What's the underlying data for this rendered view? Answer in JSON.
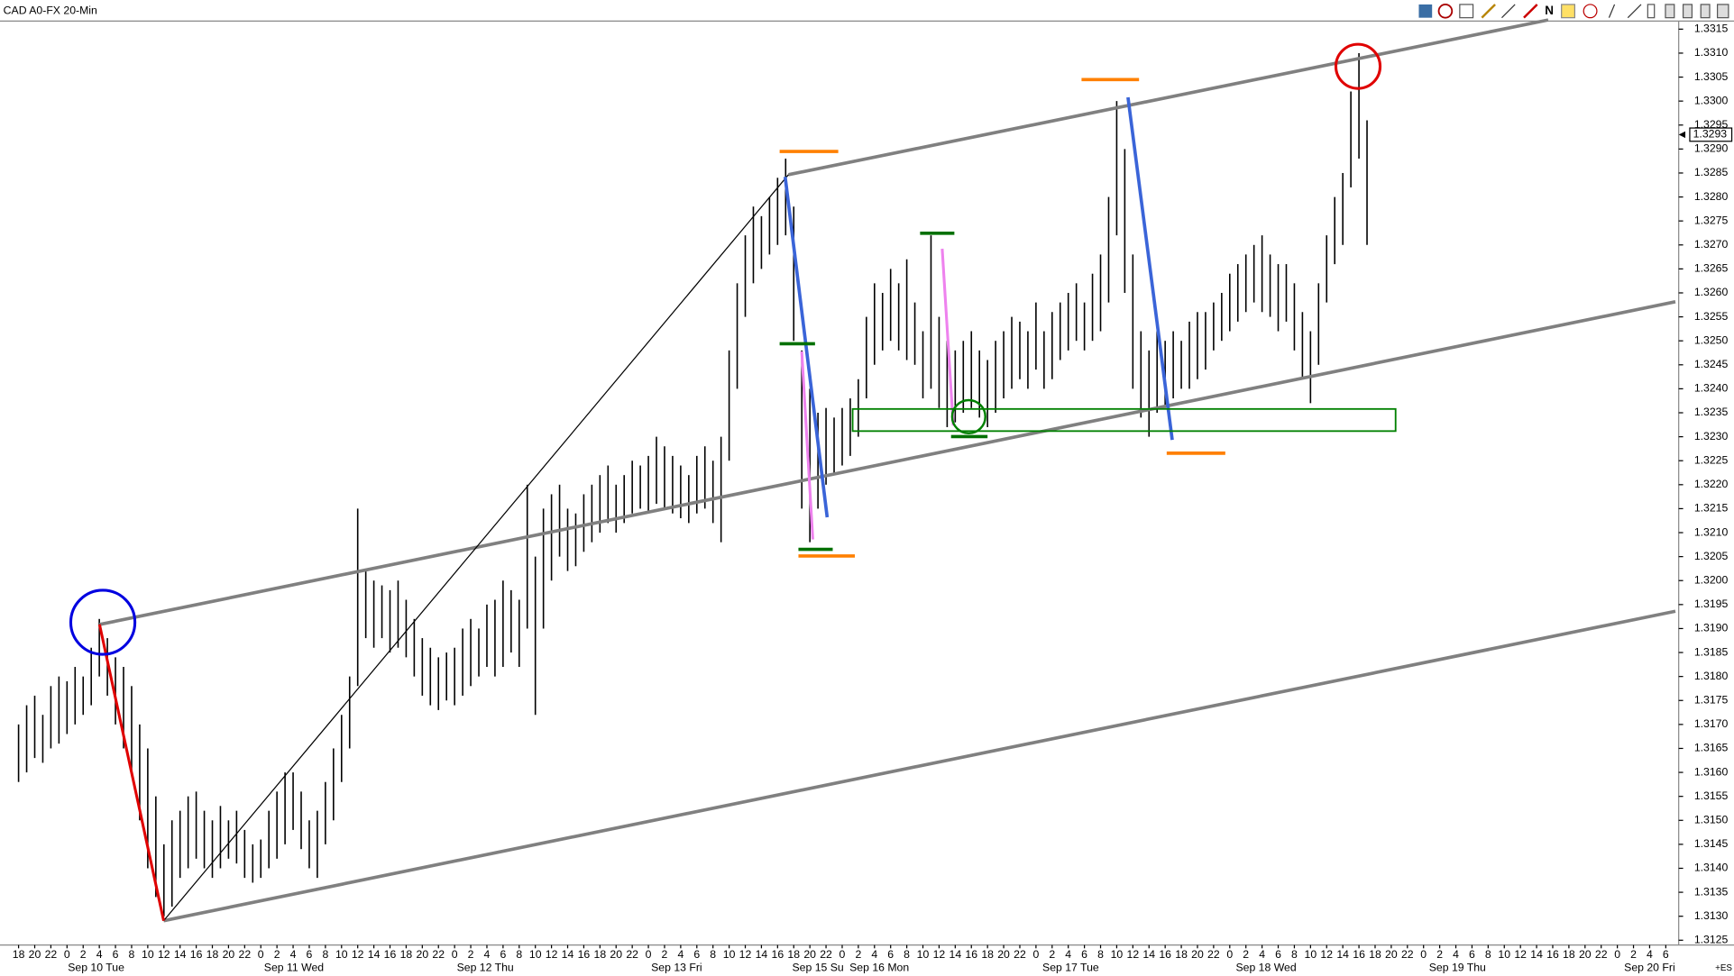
{
  "chart_data": {
    "type": "ohlc",
    "title": "CAD A0-FX 20-Min",
    "last_price": 1.3293,
    "corner_label": "+ES",
    "x": [
      0,
      1,
      2,
      3,
      4,
      5,
      6,
      7,
      8,
      9,
      10,
      11,
      12,
      13,
      14,
      15,
      16,
      17,
      18,
      19,
      20,
      21,
      22,
      23,
      24,
      25,
      26,
      27,
      28,
      29,
      30,
      31,
      32,
      33,
      34,
      35,
      36,
      37,
      38,
      39,
      40,
      41,
      42,
      43,
      44,
      45,
      46,
      47,
      48,
      49,
      50,
      51,
      52,
      53,
      54,
      55,
      56,
      57,
      58,
      59,
      60,
      61,
      62,
      63,
      64,
      65,
      66,
      67,
      68,
      69,
      70,
      71,
      72,
      73,
      74,
      75,
      76,
      77,
      78,
      79,
      80,
      81,
      82,
      83,
      84,
      85,
      86,
      87,
      88,
      89,
      90,
      91,
      92,
      93,
      94,
      95,
      96,
      97,
      98,
      99,
      100,
      101,
      102,
      103,
      104,
      105,
      106,
      107,
      108,
      109,
      110,
      111,
      112,
      113,
      114,
      115,
      116,
      117,
      118,
      119,
      120,
      121,
      122,
      123,
      124,
      125,
      126,
      127,
      128,
      129,
      130,
      131,
      132,
      133,
      134,
      135,
      136,
      137,
      138,
      139,
      140,
      141,
      142,
      143,
      144,
      145,
      146,
      147,
      148,
      149,
      150,
      151,
      152,
      153,
      154,
      155,
      156,
      157,
      158,
      159,
      160,
      161,
      162,
      163,
      164,
      165,
      166,
      167
    ],
    "high": [
      1.317,
      1.3174,
      1.3176,
      1.3172,
      1.3178,
      1.318,
      1.3179,
      1.3182,
      1.318,
      1.3186,
      1.3192,
      1.3188,
      1.3184,
      1.3182,
      1.3178,
      1.317,
      1.3165,
      1.3155,
      1.3145,
      1.315,
      1.3152,
      1.3155,
      1.3156,
      1.3152,
      1.315,
      1.3153,
      1.315,
      1.3152,
      1.3148,
      1.3145,
      1.3146,
      1.3152,
      1.3156,
      1.316,
      1.316,
      1.3156,
      1.315,
      1.3152,
      1.3158,
      1.3165,
      1.3172,
      1.318,
      1.3215,
      1.3202,
      1.32,
      1.3199,
      1.3198,
      1.32,
      1.3196,
      1.3192,
      1.3188,
      1.3186,
      1.3184,
      1.3185,
      1.3186,
      1.319,
      1.3192,
      1.319,
      1.3195,
      1.3196,
      1.32,
      1.3198,
      1.3196,
      1.322,
      1.3205,
      1.3215,
      1.3218,
      1.322,
      1.3215,
      1.3214,
      1.3218,
      1.322,
      1.3222,
      1.3224,
      1.322,
      1.3222,
      1.3225,
      1.3224,
      1.3226,
      1.323,
      1.3228,
      1.3226,
      1.3224,
      1.3222,
      1.3226,
      1.3228,
      1.3225,
      1.323,
      1.3248,
      1.3262,
      1.3272,
      1.3278,
      1.3276,
      1.328,
      1.3284,
      1.3288,
      1.3278,
      1.3248,
      1.324,
      1.3235,
      1.3236,
      1.3234,
      1.3236,
      1.3238,
      1.3242,
      1.3255,
      1.3262,
      1.326,
      1.3265,
      1.3262,
      1.3267,
      1.3258,
      1.3252,
      1.3272,
      1.3255,
      1.325,
      1.3248,
      1.325,
      1.3252,
      1.3248,
      1.3246,
      1.325,
      1.3252,
      1.3255,
      1.3254,
      1.3252,
      1.3258,
      1.3252,
      1.3256,
      1.3258,
      1.326,
      1.3262,
      1.3258,
      1.3264,
      1.3268,
      1.328,
      1.33,
      1.329,
      1.3268,
      1.3252,
      1.3248,
      1.3252,
      1.325,
      1.3252,
      1.325,
      1.3254,
      1.3256,
      1.3256,
      1.3258,
      1.326,
      1.3264,
      1.3266,
      1.3268,
      1.327,
      1.3272,
      1.3268,
      1.3266,
      1.3266,
      1.3262,
      1.3256,
      1.3252,
      1.3262,
      1.3272,
      1.328,
      1.3285,
      1.3302,
      1.331,
      1.3296
    ],
    "low": [
      1.3158,
      1.316,
      1.3163,
      1.3162,
      1.3165,
      1.3166,
      1.3168,
      1.317,
      1.3172,
      1.3174,
      1.318,
      1.3176,
      1.317,
      1.3165,
      1.316,
      1.315,
      1.314,
      1.3134,
      1.313,
      1.3132,
      1.3138,
      1.314,
      1.3142,
      1.314,
      1.3138,
      1.314,
      1.3142,
      1.3141,
      1.3138,
      1.3137,
      1.3138,
      1.314,
      1.3142,
      1.3145,
      1.3148,
      1.3144,
      1.314,
      1.3138,
      1.3145,
      1.315,
      1.3158,
      1.3165,
      1.3178,
      1.3188,
      1.3186,
      1.3188,
      1.3185,
      1.3186,
      1.3184,
      1.318,
      1.3176,
      1.3174,
      1.3173,
      1.3175,
      1.3174,
      1.3176,
      1.3178,
      1.318,
      1.3182,
      1.318,
      1.3182,
      1.3185,
      1.3182,
      1.319,
      1.3172,
      1.319,
      1.32,
      1.3205,
      1.3202,
      1.3203,
      1.3206,
      1.3208,
      1.321,
      1.3212,
      1.321,
      1.3212,
      1.3214,
      1.3215,
      1.3214,
      1.3216,
      1.3215,
      1.3214,
      1.3213,
      1.3212,
      1.3214,
      1.3215,
      1.3212,
      1.3208,
      1.3225,
      1.324,
      1.3255,
      1.3262,
      1.3265,
      1.3268,
      1.327,
      1.3272,
      1.325,
      1.3215,
      1.3208,
      1.3215,
      1.322,
      1.3222,
      1.3224,
      1.3226,
      1.323,
      1.3238,
      1.3245,
      1.3248,
      1.325,
      1.3248,
      1.3246,
      1.3245,
      1.3238,
      1.324,
      1.3236,
      1.3232,
      1.3233,
      1.3235,
      1.3236,
      1.3234,
      1.3232,
      1.3235,
      1.3238,
      1.324,
      1.3242,
      1.324,
      1.3244,
      1.324,
      1.3242,
      1.3246,
      1.3248,
      1.325,
      1.3248,
      1.325,
      1.3252,
      1.3258,
      1.3272,
      1.326,
      1.324,
      1.3234,
      1.323,
      1.3235,
      1.3236,
      1.3238,
      1.324,
      1.324,
      1.3242,
      1.3244,
      1.3248,
      1.325,
      1.3252,
      1.3254,
      1.3256,
      1.3258,
      1.3256,
      1.3255,
      1.3252,
      1.3254,
      1.3248,
      1.3242,
      1.3237,
      1.3245,
      1.3258,
      1.3266,
      1.327,
      1.3282,
      1.3288,
      1.327
    ],
    "xlim": [
      -2.3,
      205.6
    ],
    "ylim": [
      1.3124,
      1.3316
    ],
    "yticks": [
      1.3125,
      {
        "value": 1.313,
        "label": "1.3130"
      },
      1.3135,
      {
        "value": 1.314,
        "label": "1.3140"
      },
      1.3145,
      {
        "value": 1.315,
        "label": "1.3150"
      },
      1.3155,
      {
        "value": 1.316,
        "label": "1.3160"
      },
      1.3165,
      {
        "value": 1.317,
        "label": "1.3170"
      },
      1.3175,
      {
        "value": 1.318,
        "label": "1.3180"
      },
      1.3185,
      {
        "value": 1.319,
        "label": "1.3190"
      },
      1.3195,
      {
        "value": 1.32,
        "label": "1.3200"
      },
      1.3205,
      {
        "value": 1.321,
        "label": "1.3210"
      },
      1.3215,
      {
        "value": 1.322,
        "label": "1.3220"
      },
      1.3225,
      {
        "value": 1.323,
        "label": "1.3230"
      },
      1.3235,
      {
        "value": 1.324,
        "label": "1.3240"
      },
      1.3245,
      {
        "value": 1.325,
        "label": "1.3250"
      },
      1.3255,
      {
        "value": 1.326,
        "label": "1.3260"
      },
      1.3265,
      {
        "value": 1.327,
        "label": "1.3270"
      },
      1.3275,
      {
        "value": 1.328,
        "label": "1.3280"
      },
      1.3285,
      {
        "value": 1.329,
        "label": "1.3290"
      },
      1.3295,
      {
        "value": 1.33,
        "label": "1.3300"
      },
      1.3305,
      {
        "value": 1.331,
        "label": "1.3310"
      },
      1.3315
    ],
    "xticks": [
      {
        "value": 0,
        "label": "18"
      },
      {
        "value": 2,
        "label": "20"
      },
      {
        "value": 4,
        "label": "22"
      },
      {
        "value": 6,
        "label": "0"
      },
      {
        "value": 8,
        "label": "2"
      },
      {
        "value": 10,
        "label": "4"
      },
      {
        "value": 12,
        "label": "6"
      },
      {
        "value": 14,
        "label": "8"
      },
      {
        "value": 16,
        "label": "10"
      },
      {
        "value": 18,
        "label": "12"
      },
      {
        "value": 20,
        "label": "14"
      },
      {
        "value": 22,
        "label": "16"
      },
      {
        "value": 24,
        "label": "18"
      },
      {
        "value": 26,
        "label": "20"
      },
      {
        "value": 28,
        "label": "22"
      },
      {
        "value": 30,
        "label": "0"
      },
      {
        "value": 32,
        "label": "2"
      },
      {
        "value": 34,
        "label": "4"
      },
      {
        "value": 36,
        "label": "6"
      },
      {
        "value": 38,
        "label": "8"
      },
      {
        "value": 40,
        "label": "10"
      },
      {
        "value": 42,
        "label": "12"
      },
      {
        "value": 44,
        "label": "14"
      },
      {
        "value": 46,
        "label": "16"
      },
      {
        "value": 48,
        "label": "18"
      },
      {
        "value": 50,
        "label": "20"
      },
      {
        "value": 52,
        "label": "22"
      },
      {
        "value": 54,
        "label": "0"
      },
      {
        "value": 56,
        "label": "2"
      },
      {
        "value": 58,
        "label": "4"
      },
      {
        "value": 60,
        "label": "6"
      },
      {
        "value": 62,
        "label": "8"
      },
      {
        "value": 64,
        "label": "10"
      },
      {
        "value": 66,
        "label": "12"
      },
      {
        "value": 68,
        "label": "14"
      },
      {
        "value": 70,
        "label": "16"
      },
      {
        "value": 72,
        "label": "18"
      },
      {
        "value": 74,
        "label": "20"
      },
      {
        "value": 76,
        "label": "22"
      },
      {
        "value": 78,
        "label": "0"
      },
      {
        "value": 80,
        "label": "2"
      },
      {
        "value": 82,
        "label": "4"
      },
      {
        "value": 84,
        "label": "6"
      },
      {
        "value": 86,
        "label": "8"
      },
      {
        "value": 88,
        "label": "10"
      },
      {
        "value": 90,
        "label": "12"
      },
      {
        "value": 92,
        "label": "14"
      },
      {
        "value": 94,
        "label": "16"
      },
      {
        "value": 96,
        "label": "18"
      },
      {
        "value": 98,
        "label": "20"
      },
      {
        "value": 100,
        "label": "22"
      },
      {
        "value": 102,
        "label": "0"
      },
      {
        "value": 104,
        "label": "2"
      },
      {
        "value": 106,
        "label": "4"
      },
      {
        "value": 108,
        "label": "6"
      },
      {
        "value": 110,
        "label": "8"
      },
      {
        "value": 112,
        "label": "10"
      },
      {
        "value": 114,
        "label": "12"
      },
      {
        "value": 116,
        "label": "14"
      },
      {
        "value": 118,
        "label": "16"
      },
      {
        "value": 120,
        "label": "18"
      },
      {
        "value": 122,
        "label": "20"
      },
      {
        "value": 124,
        "label": "22"
      },
      {
        "value": 126,
        "label": "0"
      },
      {
        "value": 128,
        "label": "2"
      },
      {
        "value": 130,
        "label": "4"
      },
      {
        "value": 132,
        "label": "6"
      },
      {
        "value": 134,
        "label": "8"
      },
      {
        "value": 136,
        "label": "10"
      },
      {
        "value": 138,
        "label": "12"
      },
      {
        "value": 140,
        "label": "14"
      },
      {
        "value": 142,
        "label": "16"
      },
      {
        "value": 144,
        "label": "18"
      },
      {
        "value": 146,
        "label": "20"
      },
      {
        "value": 148,
        "label": "22"
      },
      {
        "value": 150,
        "label": "0"
      },
      {
        "value": 152,
        "label": "2"
      },
      {
        "value": 154,
        "label": "4"
      },
      {
        "value": 156,
        "label": "6"
      },
      {
        "value": 158,
        "label": "8"
      },
      {
        "value": 160,
        "label": "10"
      },
      {
        "value": 162,
        "label": "12"
      },
      {
        "value": 164,
        "label": "14"
      },
      {
        "value": 166,
        "label": "16"
      },
      {
        "value": 168,
        "label": "18"
      },
      {
        "value": 170,
        "label": "20"
      },
      {
        "value": 172,
        "label": "22"
      },
      {
        "value": 174,
        "label": "0"
      },
      {
        "value": 176,
        "label": "2"
      },
      {
        "value": 178,
        "label": "4"
      },
      {
        "value": 180,
        "label": "6"
      },
      {
        "value": 182,
        "label": "8"
      },
      {
        "value": 184,
        "label": "10"
      },
      {
        "value": 186,
        "label": "12"
      },
      {
        "value": 188,
        "label": "14"
      },
      {
        "value": 190,
        "label": "16"
      },
      {
        "value": 192,
        "label": "18"
      },
      {
        "value": 194,
        "label": "20"
      },
      {
        "value": 196,
        "label": "22"
      },
      {
        "value": 198,
        "label": "0"
      },
      {
        "value": 200,
        "label": "2"
      },
      {
        "value": 202,
        "label": "4"
      },
      {
        "value": 204,
        "label": "6"
      }
    ],
    "day_labels": [
      {
        "value": 9.6,
        "label": "Sep 10 Tue"
      },
      {
        "value": 34.1,
        "label": "Sep 11 Wed"
      },
      {
        "value": 57.8,
        "label": "Sep 12 Thu"
      },
      {
        "value": 81.5,
        "label": "Sep 13 Fri"
      },
      {
        "value": 99,
        "label": "Sep 15 Su"
      },
      {
        "value": 106.6,
        "label": "Sep 16 Mon"
      },
      {
        "value": 130.3,
        "label": "Sep 17 Tue"
      },
      {
        "value": 154.5,
        "label": "Sep 18 Wed"
      },
      {
        "value": 178.2,
        "label": "Sep 19 Thu"
      },
      {
        "value": 202,
        "label": "Sep 20 Fri"
      }
    ],
    "color": "#000000"
  }
}
